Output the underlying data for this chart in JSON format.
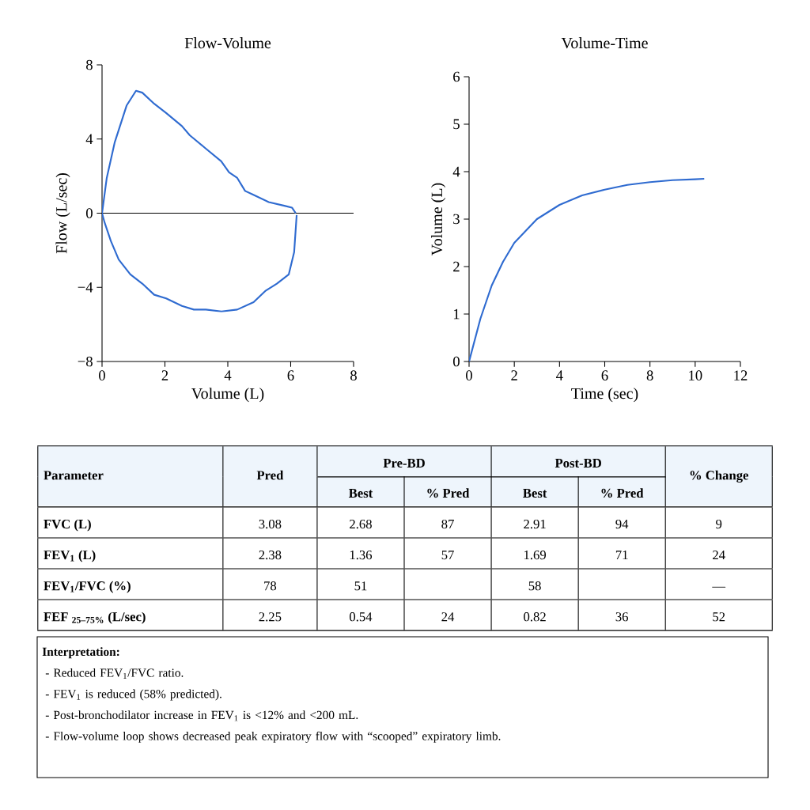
{
  "chart_data": [
    {
      "type": "line",
      "title": "Flow-Volume",
      "xlabel": "Volume (L)",
      "ylabel": "Flow (L/sec)",
      "xlim": [
        0,
        8
      ],
      "ylim": [
        -8,
        8
      ],
      "xticks": [
        0,
        2,
        4,
        6,
        8
      ],
      "yticks": [
        {
          "value": -8,
          "label": "−8"
        },
        {
          "value": -4,
          "label": "−4"
        },
        0,
        4,
        8
      ],
      "marker": "none",
      "line_style": "solid",
      "ref_lines": [
        {
          "axis": "y",
          "value": 0,
          "color": "#000000"
        }
      ],
      "series": [
        {
          "color": "#2f6bd0",
          "x": [
            0,
            0.15,
            0.4,
            0.78,
            1.08,
            1.28,
            1.66,
            2.04,
            2.54,
            2.79,
            3.29,
            3.79,
            4.04,
            4.3,
            4.55,
            4.8,
            5.3,
            5.8,
            6.04,
            6.16,
            null,
            0,
            0.08,
            0.28,
            0.53,
            0.9,
            1.28,
            1.66,
            2.04,
            2.54,
            2.92,
            3.3,
            3.8,
            4.3,
            4.82,
            5.19,
            5.56,
            5.94,
            6.11,
            6.19
          ],
          "values": [
            0,
            1.9,
            3.8,
            5.8,
            6.6,
            6.5,
            5.9,
            5.4,
            4.7,
            4.2,
            3.5,
            2.8,
            2.2,
            1.9,
            1.2,
            1.0,
            0.6,
            0.4,
            0.3,
            0,
            null,
            0,
            -0.5,
            -1.5,
            -2.5,
            -3.3,
            -3.8,
            -4.4,
            -4.6,
            -5.0,
            -5.2,
            -5.2,
            -5.3,
            -5.2,
            -4.8,
            -4.2,
            -3.8,
            -3.3,
            -2.1,
            -0.1
          ]
        }
      ]
    },
    {
      "type": "line",
      "title": "Volume-Time",
      "xlabel": "Time (sec)",
      "ylabel": "Volume (L)",
      "xlim": [
        0,
        12
      ],
      "ylim": [
        0,
        6
      ],
      "xticks": [
        0,
        2,
        4,
        6,
        8,
        10,
        12
      ],
      "yticks": [
        0,
        1,
        2,
        3,
        4,
        5,
        6
      ],
      "marker": "none",
      "line_style": "solid",
      "series": [
        {
          "color": "#2f6bd0",
          "x": [
            0,
            0.5,
            1,
            1.5,
            2,
            3,
            4,
            5,
            6,
            7,
            8,
            9,
            10,
            10.4
          ],
          "values": [
            0,
            0.9,
            1.6,
            2.1,
            2.5,
            3.0,
            3.3,
            3.5,
            3.62,
            3.72,
            3.78,
            3.82,
            3.84,
            3.85
          ]
        }
      ]
    },
    {
      "type": "other",
      "categories": [
        "Parameter",
        "Pred",
        "Pre-BD",
        "Post-BD",
        "% Change",
        "Best",
        "% Pred",
        "Best",
        "% Pred"
      ],
      "y_categories": [
        "FVC (L)",
        "FEV$_{1}$ (L)",
        "FEV$_{1}$/FVC (%)",
        "FEF $_{25–75%}$ (L/sec)"
      ],
      "cell_labels": [
        [
          "3.08",
          "2.68",
          "87",
          "2.91",
          "94",
          "9"
        ],
        [
          "2.38",
          "1.36",
          "57",
          "1.69",
          "71",
          "24"
        ],
        [
          "78",
          "51",
          null,
          "58",
          null,
          "—"
        ],
        [
          "2.25",
          "0.54",
          "24",
          "0.82",
          "36",
          "52"
        ]
      ]
    },
    {
      "type": "other",
      "title": "Interpretation:",
      "annotations": [
        "- Reduced FEV$_{1}$/FVC ratio.",
        "- FEV$_{1}$ is reduced (58% predicted).",
        "- Post-bronchodilator increase in FEV$_{1}$ is <12% and <200 mL.",
        "- Flow-volume loop shows decreased peak expiratory flow with “scooped” expiratory limb."
      ]
    }
  ]
}
